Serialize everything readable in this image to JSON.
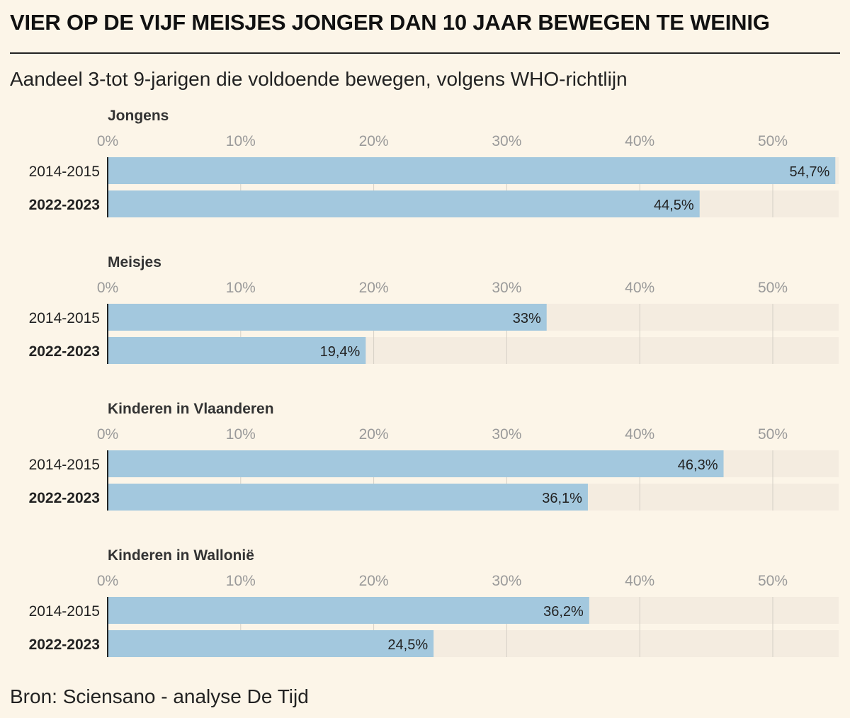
{
  "title": "VIER OP DE VIJF MEISJES JONGER DAN 10 JAAR BEWEGEN TE WEINIG",
  "subtitle": "Aandeel 3-tot 9-jarigen die voldoende bewegen, volgens WHO-richtlijn",
  "source": "Bron: Sciensano - analyse De Tijd",
  "colors": {
    "background": "#fcf5e8",
    "bar": "#a3c8de",
    "track": "#f4ece0",
    "grid": "#d5d0c6",
    "tick_text": "#9a9a9a"
  },
  "chart_data": [
    {
      "type": "bar",
      "orientation": "horizontal",
      "title": "Jongens",
      "categories": [
        "2014-2015",
        "2022-2023"
      ],
      "values": [
        54.7,
        44.5
      ],
      "value_labels": [
        "54,7%",
        "44,5%"
      ],
      "bold_categories": [
        "2022-2023"
      ],
      "xticks": [
        "0%",
        "10%",
        "20%",
        "30%",
        "40%",
        "50%"
      ],
      "xlim": [
        0,
        55
      ],
      "grid": true
    },
    {
      "type": "bar",
      "orientation": "horizontal",
      "title": "Meisjes",
      "categories": [
        "2014-2015",
        "2022-2023"
      ],
      "values": [
        33,
        19.4
      ],
      "value_labels": [
        "33%",
        "19,4%"
      ],
      "bold_categories": [
        "2022-2023"
      ],
      "xticks": [
        "0%",
        "10%",
        "20%",
        "30%",
        "40%",
        "50%"
      ],
      "xlim": [
        0,
        55
      ],
      "grid": true
    },
    {
      "type": "bar",
      "orientation": "horizontal",
      "title": "Kinderen in Vlaanderen",
      "categories": [
        "2014-2015",
        "2022-2023"
      ],
      "values": [
        46.3,
        36.1
      ],
      "value_labels": [
        "46,3%",
        "36,1%"
      ],
      "bold_categories": [
        "2022-2023"
      ],
      "xticks": [
        "0%",
        "10%",
        "20%",
        "30%",
        "40%",
        "50%"
      ],
      "xlim": [
        0,
        55
      ],
      "grid": true
    },
    {
      "type": "bar",
      "orientation": "horizontal",
      "title": "Kinderen in Wallonië",
      "categories": [
        "2014-2015",
        "2022-2023"
      ],
      "values": [
        36.2,
        24.5
      ],
      "value_labels": [
        "36,2%",
        "24,5%"
      ],
      "bold_categories": [
        "2022-2023"
      ],
      "xticks": [
        "0%",
        "10%",
        "20%",
        "30%",
        "40%",
        "50%"
      ],
      "xlim": [
        0,
        55
      ],
      "grid": true
    }
  ]
}
